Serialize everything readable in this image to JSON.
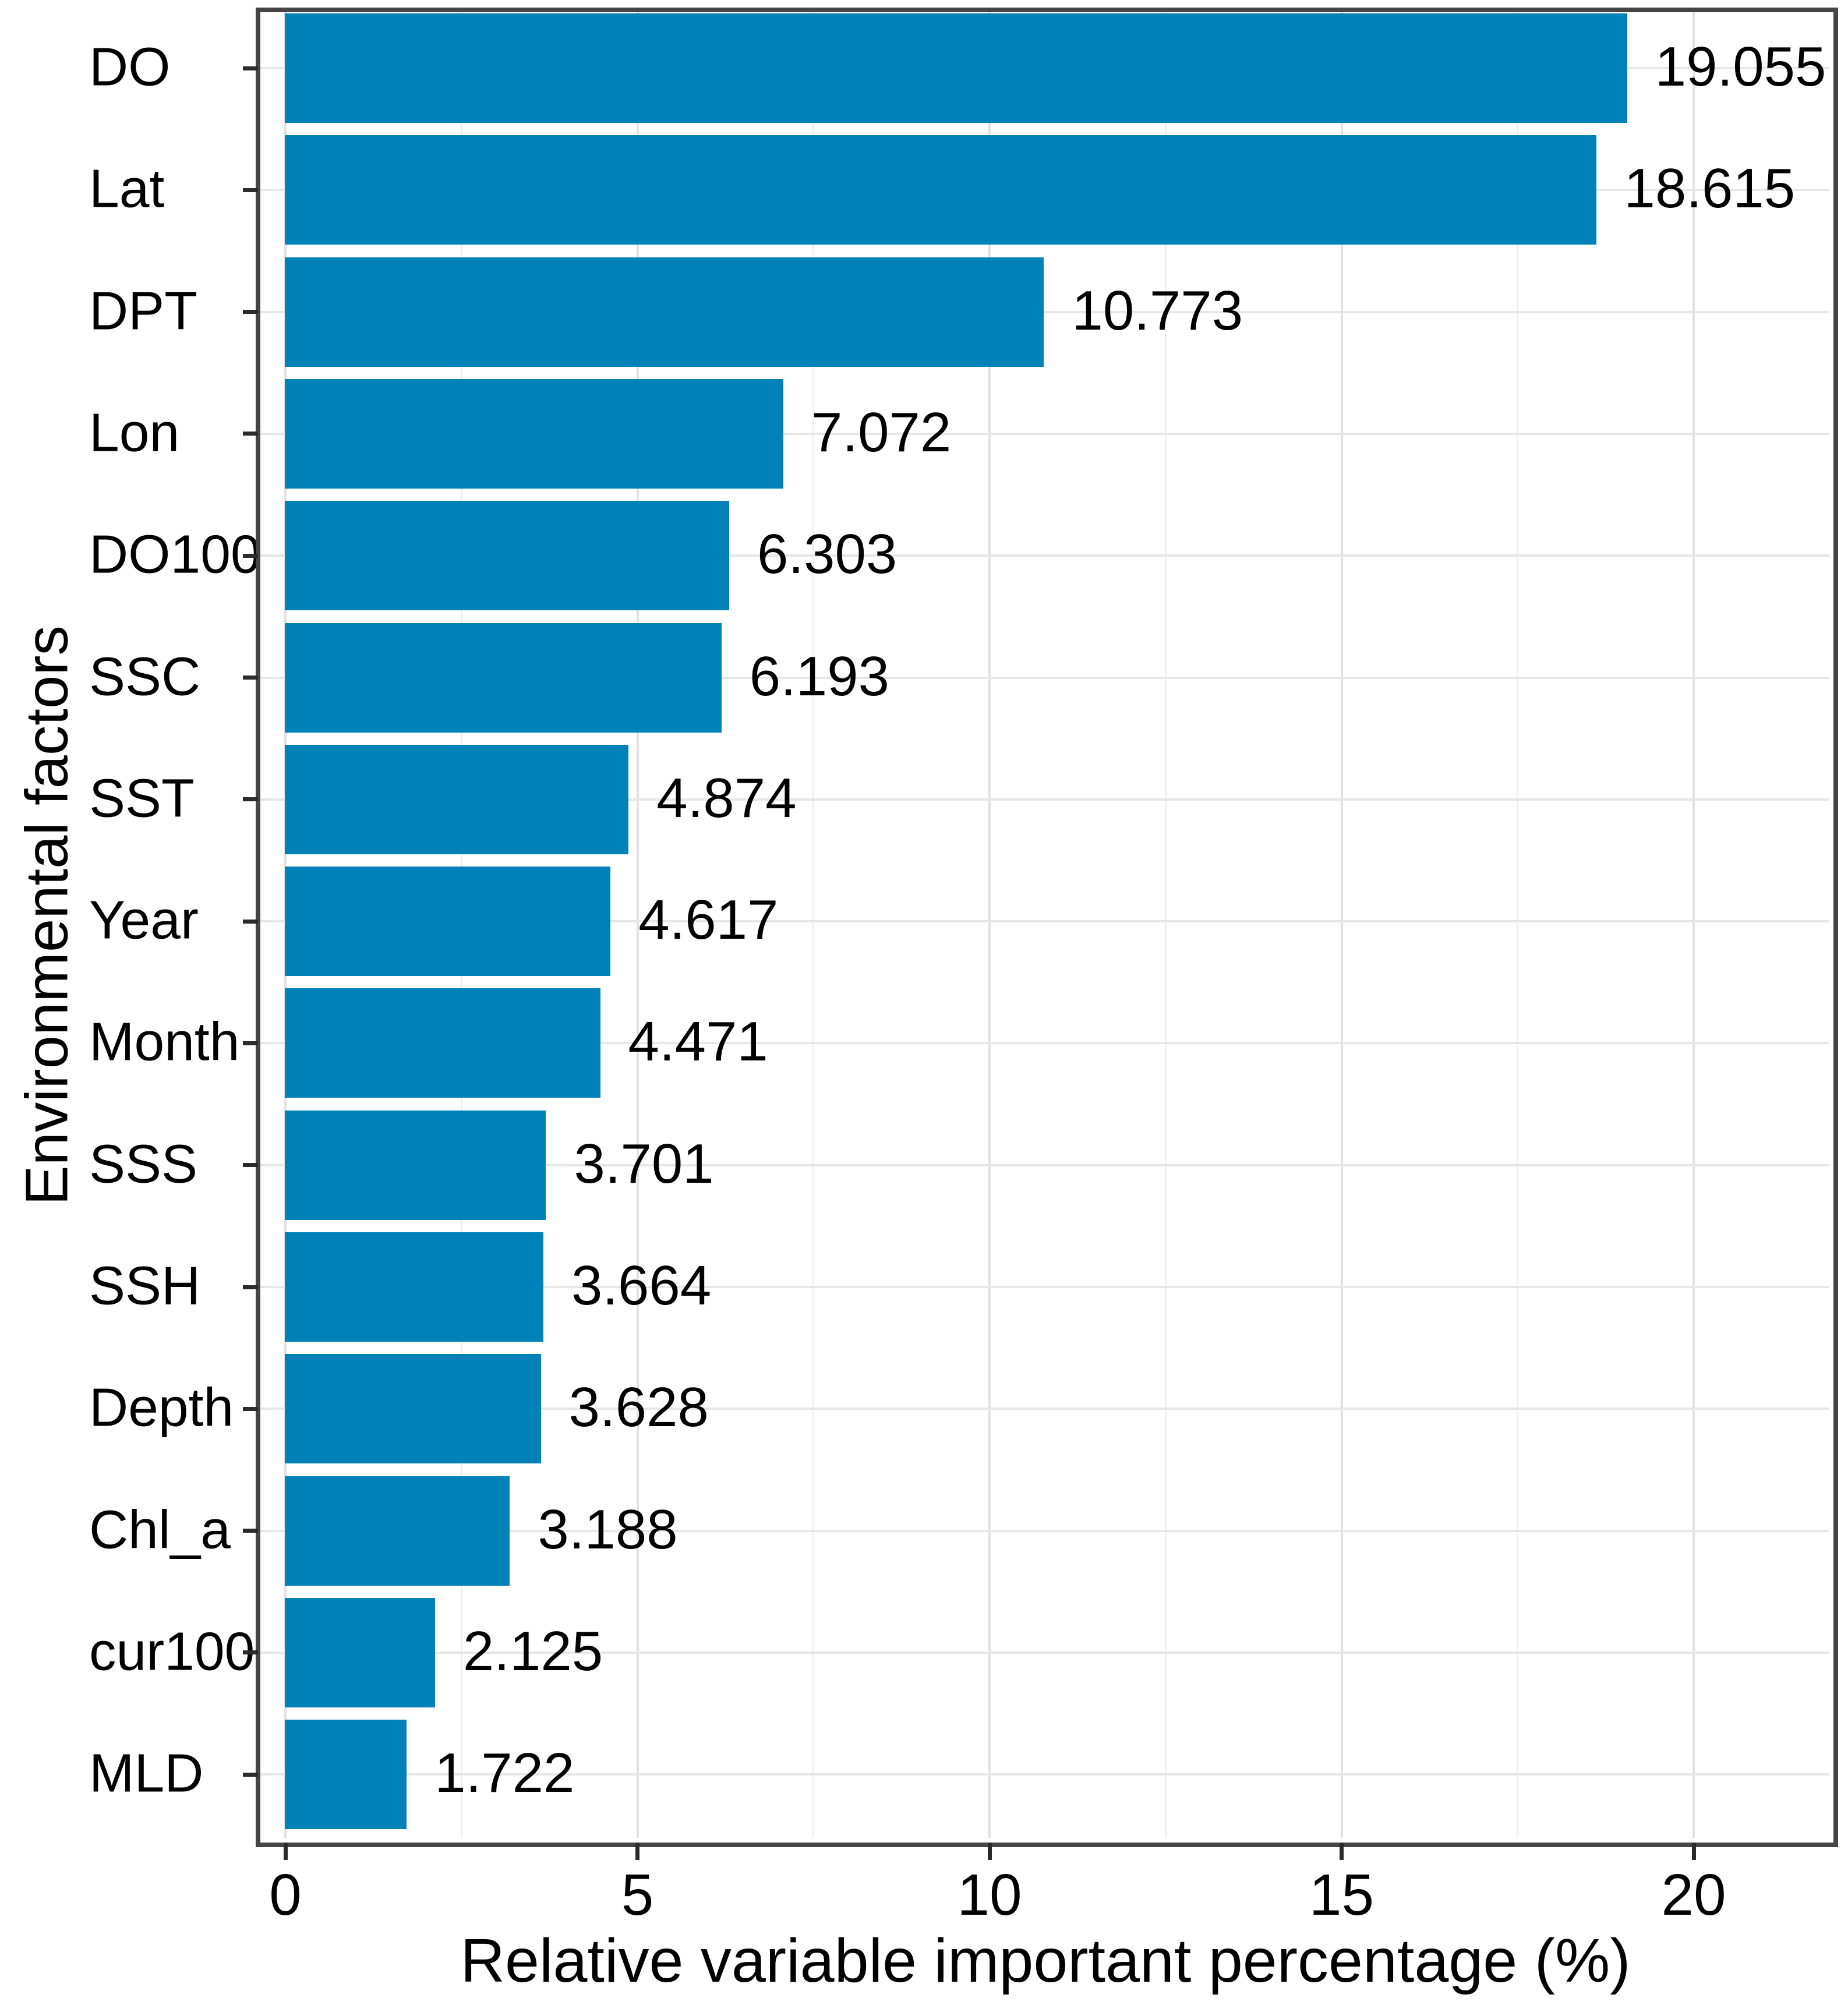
{
  "chart_data": {
    "type": "bar",
    "orientation": "horizontal",
    "title": "",
    "xlabel": "Relative variable important percentage (%)",
    "ylabel": "Environmental factors",
    "categories": [
      "DO",
      "Lat",
      "DPT",
      "Lon",
      "DO100",
      "SSC",
      "SST",
      "Year",
      "Month",
      "SSS",
      "SSH",
      "Depth",
      "Chl_a",
      "cur100",
      "MLD"
    ],
    "values": [
      19.055,
      18.615,
      10.773,
      7.072,
      6.303,
      6.193,
      4.874,
      4.617,
      4.471,
      3.701,
      3.664,
      3.628,
      3.188,
      2.125,
      1.722
    ],
    "value_labels": [
      "19.055",
      "18.615",
      "10.773",
      "7.072",
      "6.303",
      "6.193",
      "4.874",
      "4.617",
      "4.471",
      "3.701",
      "3.664",
      "3.628",
      "3.188",
      "2.125",
      "1.722"
    ],
    "x_ticks": [
      0,
      5,
      10,
      15,
      20
    ],
    "x_tick_labels": [
      "0",
      "5",
      "10",
      "15",
      "20"
    ],
    "x_minor_ticks": [
      2.5,
      7.5,
      12.5,
      17.5
    ],
    "xlim": [
      -0.37,
      22.05
    ],
    "grid": true,
    "legend": false,
    "colors": {
      "bar": "#0082b8",
      "panel_border": "#454545",
      "axis_tick": "#2b2b2b",
      "grid_major": "#e2e2e2",
      "grid_minor": "#efefef",
      "text": "#000000",
      "background": "#ffffff"
    }
  }
}
